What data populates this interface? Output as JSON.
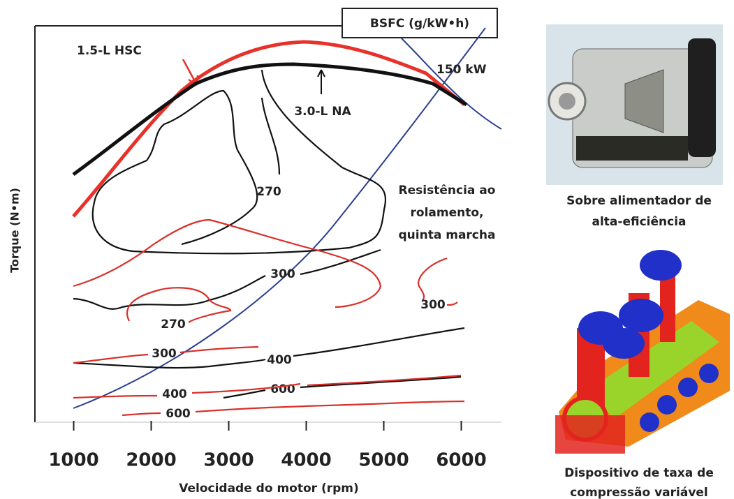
{
  "chart_data": {
    "type": "contour",
    "xlabel": "Velocidade do motor (rpm)",
    "ylabel": "Torque (N•m)",
    "xlim": [
      500,
      6500
    ],
    "xticks": [
      1000,
      2000,
      3000,
      4000,
      5000,
      6000
    ],
    "contour_title": "BSFC (g/kW•h)",
    "curves": [
      {
        "name": "1.5-L HSC",
        "color": "#e8312a"
      },
      {
        "name": "3.0-L NA",
        "color": "#111111"
      }
    ],
    "contours": [
      {
        "level": 270,
        "color": "#111111"
      },
      {
        "level": 300,
        "color": "#111111"
      },
      {
        "level": 400,
        "color": "#111111"
      },
      {
        "level": 600,
        "color": "#111111"
      },
      {
        "level": 270,
        "color": "#d9302a"
      },
      {
        "level": 300,
        "color": "#d9302a"
      },
      {
        "level": 300,
        "color": "#d9302a"
      },
      {
        "level": 400,
        "color": "#d9302a"
      },
      {
        "level": 600,
        "color": "#d9302a"
      }
    ],
    "power_line": "150 kW",
    "road_load": [
      "Resistência ao",
      "rolamento,",
      "quinta marcha"
    ],
    "side_captions": [
      [
        "Sobre alimentador de",
        "alta-eficiência"
      ],
      [
        "Dispositivo de taxa de",
        "compressão variável"
      ]
    ]
  }
}
